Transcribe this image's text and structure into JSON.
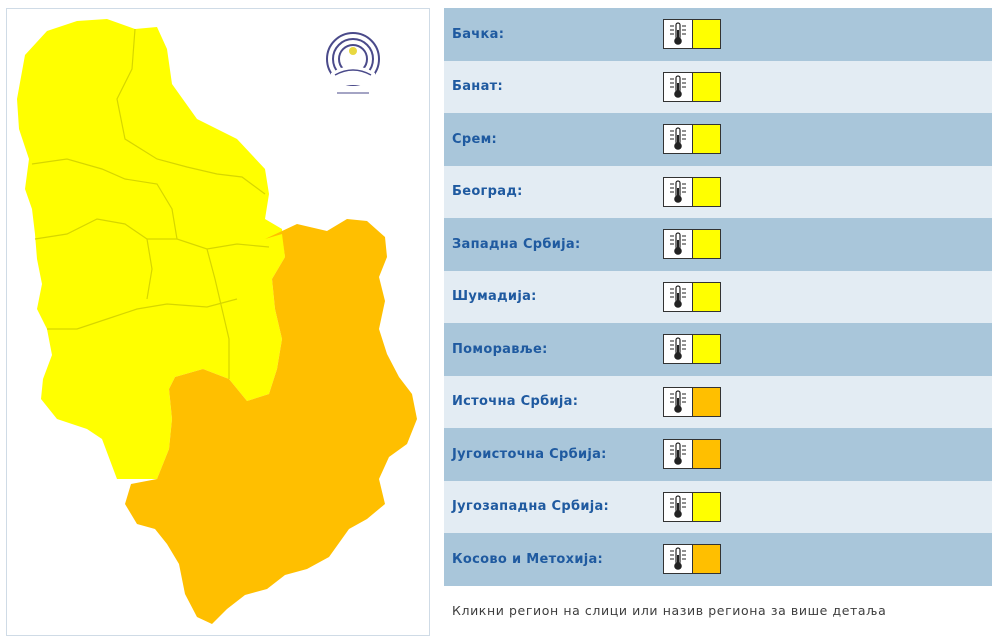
{
  "colors": {
    "level_yellow": "#ffff00",
    "level_orange": "#ffbf00",
    "row_dark": "#a9c6da",
    "row_light": "#e3ecf3",
    "label_blue": "#1f5aa0"
  },
  "map": {
    "regions": [
      {
        "name": "north-region",
        "level": "yellow"
      },
      {
        "name": "central-region",
        "level": "yellow"
      },
      {
        "name": "southeast-region",
        "level": "orange"
      }
    ],
    "logo_icon": "weather-service-logo-icon"
  },
  "regions": [
    {
      "label": "Бачка:",
      "level": "yellow",
      "icon": "thermometer-icon"
    },
    {
      "label": "Банат:",
      "level": "yellow",
      "icon": "thermometer-icon"
    },
    {
      "label": "Срем:",
      "level": "yellow",
      "icon": "thermometer-icon"
    },
    {
      "label": "Београд:",
      "level": "yellow",
      "icon": "thermometer-icon"
    },
    {
      "label": "Западна Србија:",
      "level": "yellow",
      "icon": "thermometer-icon"
    },
    {
      "label": "Шумадија:",
      "level": "yellow",
      "icon": "thermometer-icon"
    },
    {
      "label": "Поморавље:",
      "level": "yellow",
      "icon": "thermometer-icon"
    },
    {
      "label": "Источна Србија:",
      "level": "orange",
      "icon": "thermometer-icon"
    },
    {
      "label": "Југоисточна Србија:",
      "level": "orange",
      "icon": "thermometer-icon"
    },
    {
      "label": "Југозападна Србија:",
      "level": "yellow",
      "icon": "thermometer-icon"
    },
    {
      "label": "Косово и Метохија:",
      "level": "orange",
      "icon": "thermometer-icon"
    }
  ],
  "footer": {
    "hint": "Кликни регион на слици или назив региона за више детаља"
  }
}
